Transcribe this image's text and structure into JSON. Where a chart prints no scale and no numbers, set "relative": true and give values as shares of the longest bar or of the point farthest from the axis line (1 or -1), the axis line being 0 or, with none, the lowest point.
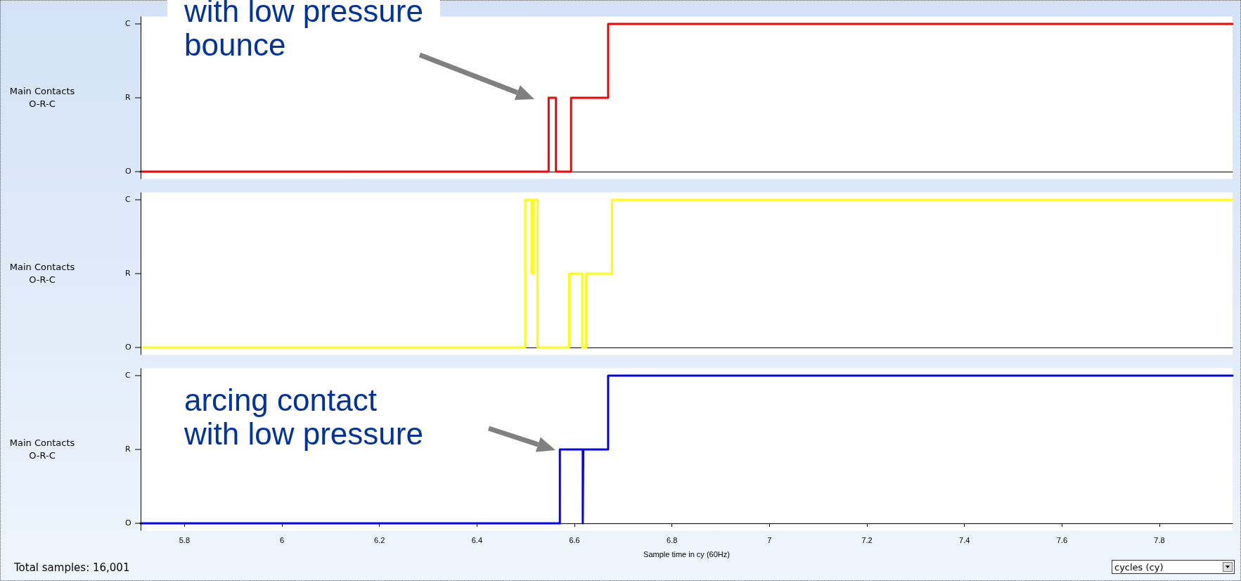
{
  "chart_data": [
    {
      "type": "step",
      "relative": true,
      "ylabel": "Main Contacts\nO-R-C",
      "xlim": [
        5.71,
        7.95
      ],
      "tick_labels": "y",
      "grid": false,
      "marker": "none",
      "line_style": "solid",
      "series": [
        {
          "color": "#ff0000",
          "x": [
            5.71,
            6.547,
            6.562,
            6.593,
            6.669,
            7.95
          ],
          "values": [
            0,
            0.5,
            0,
            0.5,
            1,
            1
          ]
        }
      ],
      "annotations": [
        "with low pressure\nbounce",
        "O",
        "R",
        "C"
      ]
    },
    {
      "type": "step",
      "relative": true,
      "ylabel": "Main Contacts\nO-R-C",
      "xlim": [
        5.71,
        7.95
      ],
      "tick_labels": "y",
      "grid": false,
      "marker": "none",
      "line_style": "solid",
      "series": [
        {
          "color": "#ffff00",
          "x": [
            5.71,
            6.499,
            6.512,
            6.516,
            6.524,
            6.589,
            6.616,
            6.624,
            6.677,
            7.95
          ],
          "values": [
            0,
            1,
            0.5,
            1,
            0,
            0.5,
            0,
            0.5,
            1,
            1
          ]
        }
      ],
      "annotations": [
        "O",
        "R",
        "C"
      ]
    },
    {
      "type": "step",
      "relative": true,
      "ylabel": "Main Contacts\nO-R-C",
      "xlabel": "Sample time in cy (60Hz)",
      "xlim": [
        5.71,
        7.95
      ],
      "xticks": [
        5.8,
        6,
        6.2,
        6.4,
        6.6,
        6.8,
        7,
        7.2,
        7.4,
        7.6,
        7.8
      ],
      "grid": false,
      "marker": "none",
      "line_style": "solid",
      "series": [
        {
          "color": "#0000ff",
          "x": [
            5.71,
            6.57,
            6.617,
            6.618,
            6.669,
            7.95
          ],
          "values": [
            0,
            0.5,
            0,
            0.5,
            1,
            1
          ]
        }
      ],
      "annotations": [
        "arcing contact\nwith low pressure",
        "Total samples: 16,001",
        "cycles (cy)",
        "O",
        "R",
        "C"
      ]
    }
  ]
}
